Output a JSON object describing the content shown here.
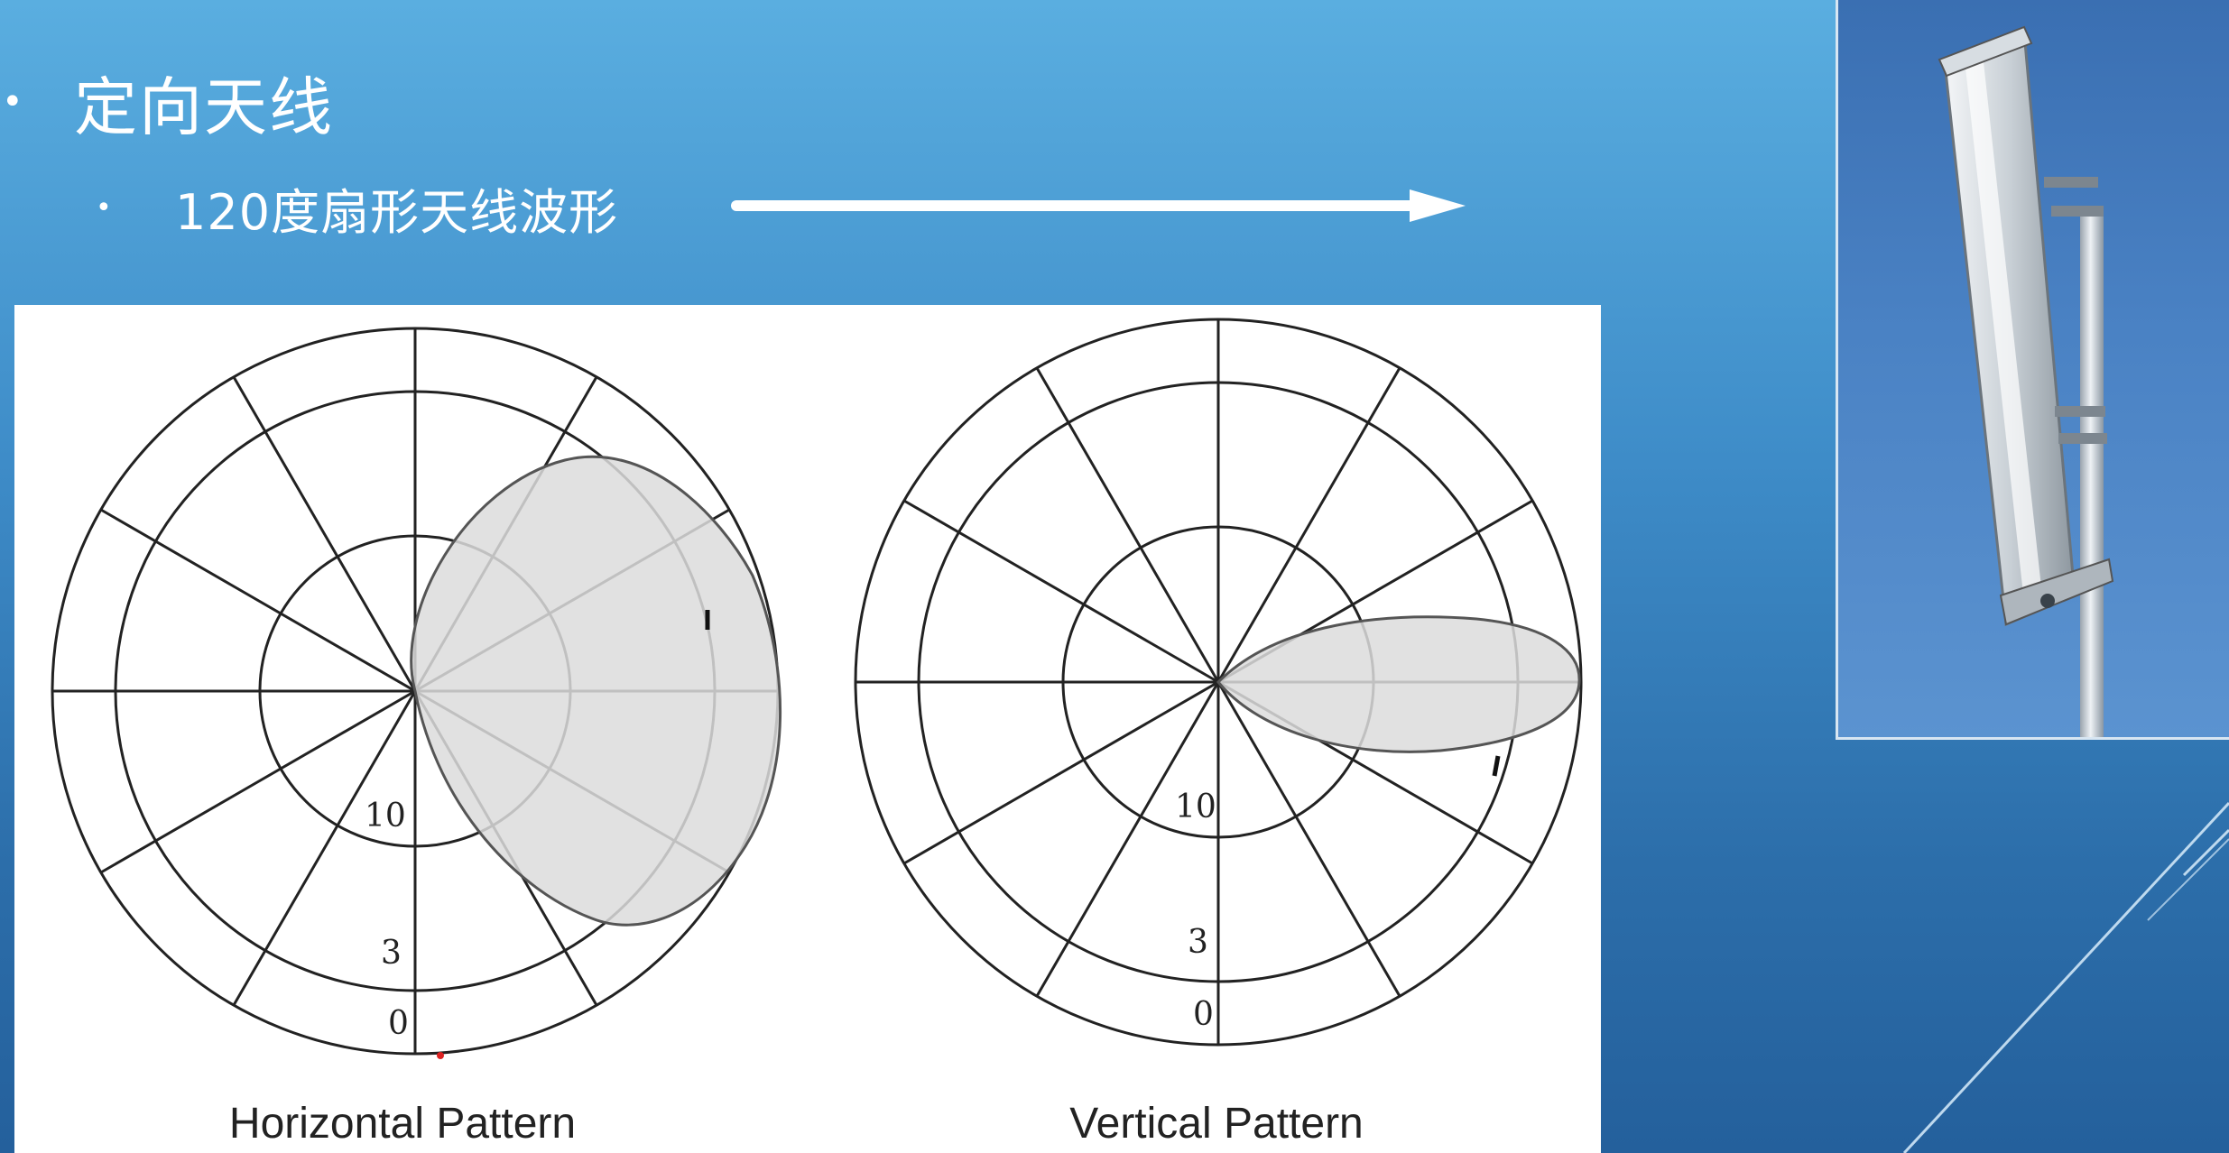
{
  "slide": {
    "bullet1": "定向天线",
    "bullet2": "120度扇形天线波形",
    "bullet_glyph": "•"
  },
  "diagram": {
    "ring_labels": [
      "10",
      "3",
      "0"
    ],
    "left_caption": "Horizontal Pattern",
    "right_caption": "Vertical Pattern",
    "lobe_fill": "#dcdcdc"
  },
  "photo": {
    "subject": "antenna-photo"
  }
}
